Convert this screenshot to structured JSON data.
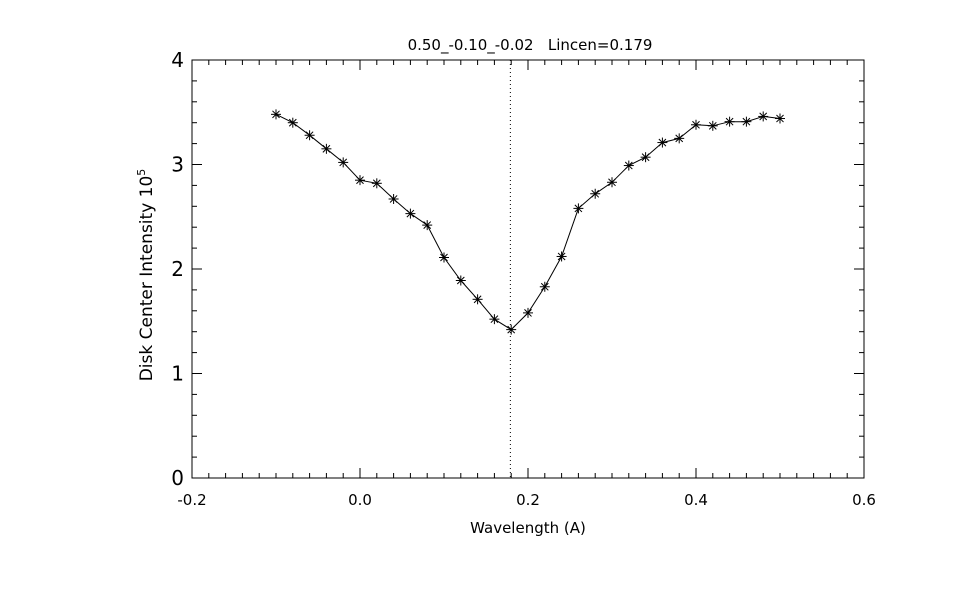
{
  "chart_data": {
    "type": "line",
    "title": "0.50_-0.10_-0.02   Lincen=0.179",
    "xlabel": "Wavelength (A)",
    "ylabel": "Disk Center Intensity 10",
    "ylabel_exponent": "5",
    "xlim": [
      -0.2,
      0.6
    ],
    "ylim": [
      0,
      4
    ],
    "xticks": [
      "-0.2",
      "0.0",
      "0.2",
      "0.4",
      "0.6"
    ],
    "yticks": [
      "0",
      "1",
      "2",
      "3",
      "4"
    ],
    "marker": "asterisk",
    "grid": false,
    "reference_line": {
      "x": 0.179,
      "style": "dotted"
    },
    "series": [
      {
        "x": [
          -0.1,
          -0.08,
          -0.06,
          -0.04,
          -0.02,
          0.0,
          0.02,
          0.04,
          0.06,
          0.08,
          0.1,
          0.12,
          0.14,
          0.16,
          0.18,
          0.2,
          0.22,
          0.24,
          0.26,
          0.28,
          0.3,
          0.32,
          0.34,
          0.36,
          0.38,
          0.4,
          0.42,
          0.44,
          0.46,
          0.48,
          0.5
        ],
        "y": [
          3.48,
          3.4,
          3.28,
          3.15,
          3.02,
          2.85,
          2.82,
          2.67,
          2.53,
          2.42,
          2.11,
          1.89,
          1.71,
          1.52,
          1.42,
          1.58,
          1.83,
          2.12,
          2.58,
          2.72,
          2.83,
          2.99,
          3.07,
          3.21,
          3.25,
          3.38,
          3.37,
          3.41,
          3.41,
          3.46,
          3.44
        ]
      }
    ]
  }
}
